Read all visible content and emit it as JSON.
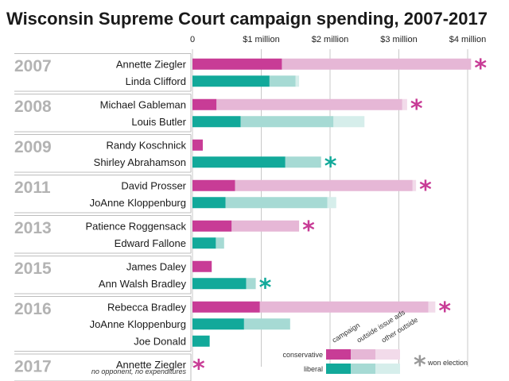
{
  "chart_data": {
    "type": "bar",
    "stacked": true,
    "orientation": "horizontal",
    "title": "Wisconsin Supreme Court campaign spending, 2007-2017",
    "x_ticks": [
      {
        "value": 0,
        "label": "0"
      },
      {
        "value": 1,
        "label": "$1 million"
      },
      {
        "value": 2,
        "label": "$2 million"
      },
      {
        "value": 3,
        "label": "$3 million"
      },
      {
        "value": 4,
        "label": "$4 million"
      }
    ],
    "xlim": [
      0,
      4.05
    ],
    "grid": true,
    "components": [
      "campaign",
      "outside issue ads",
      "other outside"
    ],
    "legend": {
      "position": "bottom-right",
      "column_labels": [
        "campaign",
        "outside issue ads",
        "other outside"
      ],
      "rows": [
        {
          "label": "conservative",
          "side": "conservative"
        },
        {
          "label": "liberal",
          "side": "liberal"
        }
      ],
      "won_label": "won election",
      "star_symbol": "*"
    },
    "colors": {
      "conservative": [
        "#c83c96",
        "#e6b7d6",
        "#f2dbea"
      ],
      "liberal": [
        "#12a99a",
        "#a6dad4",
        "#d6eeeb"
      ],
      "won_neutral": "#999999"
    },
    "years": [
      {
        "year": "2007",
        "candidates": [
          {
            "name": "Annette Ziegler",
            "side": "conservative",
            "values": [
              1.3,
              2.75,
              0.0
            ],
            "won": true
          },
          {
            "name": "Linda Clifford",
            "side": "liberal",
            "values": [
              1.12,
              0.38,
              0.05
            ],
            "won": false
          }
        ]
      },
      {
        "year": "2008",
        "candidates": [
          {
            "name": "Michael Gableman",
            "side": "conservative",
            "values": [
              0.35,
              2.7,
              0.07
            ],
            "won": true
          },
          {
            "name": "Louis Butler",
            "side": "liberal",
            "values": [
              0.7,
              1.35,
              0.45
            ],
            "won": false
          }
        ]
      },
      {
        "year": "2009",
        "candidates": [
          {
            "name": "Randy Koschnick",
            "side": "conservative",
            "values": [
              0.15,
              0.0,
              0.0
            ],
            "won": false
          },
          {
            "name": "Shirley Abrahamson",
            "side": "liberal",
            "values": [
              1.35,
              0.52,
              0.0
            ],
            "won": true
          }
        ]
      },
      {
        "year": "2011",
        "candidates": [
          {
            "name": "David Prosser",
            "side": "conservative",
            "values": [
              0.62,
              2.58,
              0.05
            ],
            "won": true
          },
          {
            "name": "JoAnne Kloppenburg",
            "side": "liberal",
            "values": [
              0.48,
              1.48,
              0.13
            ],
            "won": false
          }
        ]
      },
      {
        "year": "2013",
        "candidates": [
          {
            "name": "Patience Roggensack",
            "side": "conservative",
            "values": [
              0.57,
              0.98,
              0.0
            ],
            "won": true
          },
          {
            "name": "Edward Fallone",
            "side": "liberal",
            "values": [
              0.34,
              0.12,
              0.0
            ],
            "won": false
          }
        ]
      },
      {
        "year": "2015",
        "candidates": [
          {
            "name": "James Daley",
            "side": "conservative",
            "values": [
              0.28,
              0.0,
              0.0
            ],
            "won": false
          },
          {
            "name": "Ann Walsh Bradley",
            "side": "liberal",
            "values": [
              0.78,
              0.14,
              0.0
            ],
            "won": true
          }
        ]
      },
      {
        "year": "2016",
        "candidates": [
          {
            "name": "Rebecca Bradley",
            "side": "conservative",
            "values": [
              0.98,
              2.45,
              0.1
            ],
            "won": true
          },
          {
            "name": "JoAnne Kloppenburg",
            "side": "liberal",
            "values": [
              0.75,
              0.67,
              0.0
            ],
            "won": false
          },
          {
            "name": "Joe Donald",
            "side": "liberal",
            "values": [
              0.25,
              0.0,
              0.0
            ],
            "won": false
          }
        ]
      },
      {
        "year": "2017",
        "candidates": [
          {
            "name": "Annette Ziegler",
            "side": "conservative",
            "values": [
              0.0,
              0.0,
              0.0
            ],
            "won": true,
            "note": "no opponent, no expenditures"
          }
        ]
      }
    ]
  }
}
